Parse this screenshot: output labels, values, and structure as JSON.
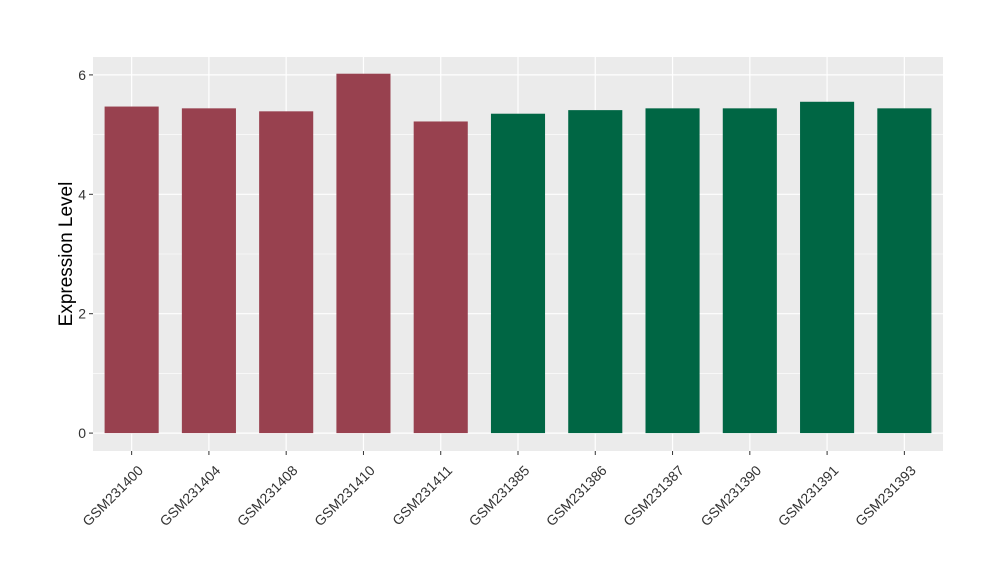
{
  "chart_data": {
    "type": "bar",
    "ylabel": "Expression Level",
    "xlabel": "",
    "title": "",
    "ylim": [
      -0.3,
      6.3
    ],
    "yticks": [
      0,
      2,
      4,
      6
    ],
    "ytick_labels": [
      "0",
      "2",
      "4",
      "6"
    ],
    "grid": true,
    "categories": [
      "GSM231400",
      "GSM231404",
      "GSM231408",
      "GSM231410",
      "GSM231411",
      "GSM231385",
      "GSM231386",
      "GSM231387",
      "GSM231390",
      "GSM231391",
      "GSM231393"
    ],
    "values": [
      5.47,
      5.44,
      5.39,
      6.02,
      5.22,
      5.35,
      5.41,
      5.44,
      5.44,
      5.55,
      5.44
    ],
    "bar_colors": [
      "#98414F",
      "#98414F",
      "#98414F",
      "#98414F",
      "#98414F",
      "#006644",
      "#006644",
      "#006644",
      "#006644",
      "#006644",
      "#006644"
    ],
    "panel_background": "#EBEBEB",
    "gridline_color": "#FFFFFF"
  }
}
